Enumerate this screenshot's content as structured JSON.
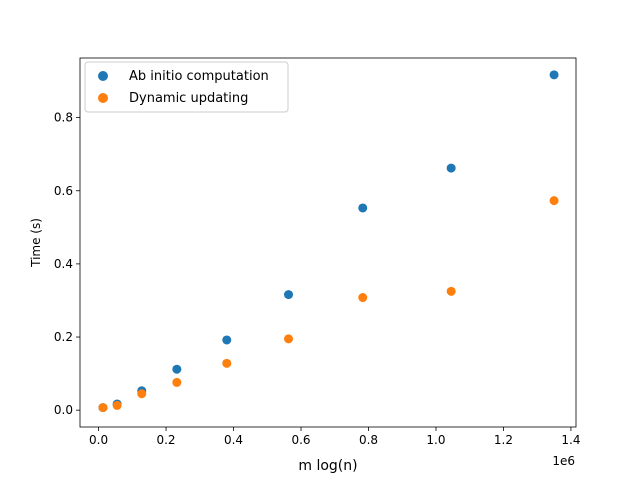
{
  "chart_data": {
    "type": "scatter",
    "xlabel": "m log(n)",
    "ylabel": "Time (s)",
    "x_offset_label": "1e6",
    "xlim": [
      -0.055,
      1.415
    ],
    "ylim": [
      -0.046,
      0.963
    ],
    "x_ticks": [
      0.0,
      0.2,
      0.4,
      0.6,
      0.8,
      1.0,
      1.2,
      1.4
    ],
    "x_tick_labels": [
      "0.0",
      "0.2",
      "0.4",
      "0.6",
      "0.8",
      "1.0",
      "1.2",
      "1.4"
    ],
    "y_ticks": [
      0.0,
      0.2,
      0.4,
      0.6,
      0.8
    ],
    "y_tick_labels": [
      "0.0",
      "0.2",
      "0.4",
      "0.6",
      "0.8"
    ],
    "grid": false,
    "legend_position": "top-left",
    "series": [
      {
        "name": "Ab initio computation",
        "color": "#1f77b4",
        "x": [
          0.013,
          0.055,
          0.128,
          0.232,
          0.38,
          0.563,
          0.783,
          1.045,
          1.35
        ],
        "y": [
          0.007,
          0.017,
          0.053,
          0.112,
          0.192,
          0.316,
          0.553,
          0.662,
          0.917
        ]
      },
      {
        "name": "Dynamic updating",
        "color": "#ff7f0e",
        "x": [
          0.013,
          0.055,
          0.128,
          0.232,
          0.38,
          0.563,
          0.783,
          1.045,
          1.35
        ],
        "y": [
          0.007,
          0.013,
          0.045,
          0.076,
          0.128,
          0.195,
          0.308,
          0.325,
          0.573
        ]
      }
    ]
  }
}
